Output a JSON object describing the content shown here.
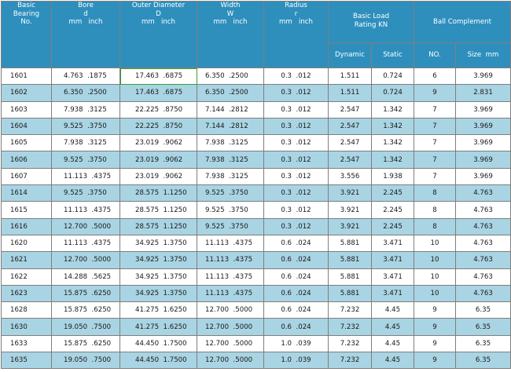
{
  "headers": {
    "basic": [
      "Basic",
      "Bearing",
      "No."
    ],
    "bore": [
      "Bore",
      "d",
      "mm   inch"
    ],
    "outer": [
      "Outer Diameter",
      "D",
      "mm   inch"
    ],
    "width": [
      "Width",
      "W",
      "mm   inch"
    ],
    "radius": [
      "Radius",
      "r",
      "mm   inch"
    ],
    "load": [
      "Basic Load",
      "Rating KN"
    ],
    "ball": "Ball Complement",
    "dynamic": "Dynamic",
    "static": "Static",
    "no": "NO.",
    "size": "Size  mm"
  },
  "rows": [
    {
      "no": "1601",
      "bore": "4.763  .1875",
      "od": "17.463  .6875",
      "w": "6.350  .2500",
      "r": "0.3  .012",
      "dyn": "1.511",
      "stat": "0.724",
      "bn": "6",
      "bs": "3.969"
    },
    {
      "no": "1602",
      "bore": "6.350  .2500",
      "od": "17.463  .6875",
      "w": "6.350  .2500",
      "r": "0.3  .012",
      "dyn": "1.511",
      "stat": "0.724",
      "bn": "9",
      "bs": "2.831"
    },
    {
      "no": "1603",
      "bore": "7.938  .3125",
      "od": "22.225  .8750",
      "w": "7.144  .2812",
      "r": "0.3  .012",
      "dyn": "2.547",
      "stat": "1.342",
      "bn": "7",
      "bs": "3.969"
    },
    {
      "no": "1604",
      "bore": "9.525  .3750",
      "od": "22.225  .8750",
      "w": "7.144  .2812",
      "r": "0.3  .012",
      "dyn": "2.547",
      "stat": "1.342",
      "bn": "7",
      "bs": "3.969"
    },
    {
      "no": "1605",
      "bore": "7.938  .3125",
      "od": "23.019  .9062",
      "w": "7.938  .3125",
      "r": "0.3  .012",
      "dyn": "2.547",
      "stat": "1.342",
      "bn": "7",
      "bs": "3.969"
    },
    {
      "no": "1606",
      "bore": "9.525  .3750",
      "od": "23.019  .9062",
      "w": "7.938  .3125",
      "r": "0.3  .012",
      "dyn": "2.547",
      "stat": "1.342",
      "bn": "7",
      "bs": "3.969"
    },
    {
      "no": "1607",
      "bore": "11.113  .4375",
      "od": "23.019  .9062",
      "w": "7.938  .3125",
      "r": "0.3  .012",
      "dyn": "3.556",
      "stat": "1.938",
      "bn": "7",
      "bs": "3.969"
    },
    {
      "no": "1614",
      "bore": "9.525  .3750",
      "od": "28.575  1.1250",
      "w": "9.525  .3750",
      "r": "0.3  .012",
      "dyn": "3.921",
      "stat": "2.245",
      "bn": "8",
      "bs": "4.763"
    },
    {
      "no": "1615",
      "bore": "11.113  .4375",
      "od": "28.575  1.1250",
      "w": "9.525  .3750",
      "r": "0.3  .012",
      "dyn": "3.921",
      "stat": "2.245",
      "bn": "8",
      "bs": "4.763"
    },
    {
      "no": "1616",
      "bore": "12.700  .5000",
      "od": "28.575  1.1250",
      "w": "9.525  .3750",
      "r": "0.3  .012",
      "dyn": "3.921",
      "stat": "2.245",
      "bn": "8",
      "bs": "4.763"
    },
    {
      "no": "1620",
      "bore": "11.113  .4375",
      "od": "34.925  1.3750",
      "w": "11.113  .4375",
      "r": "0.6  .024",
      "dyn": "5.881",
      "stat": "3.471",
      "bn": "10",
      "bs": "4.763"
    },
    {
      "no": "1621",
      "bore": "12.700  .5000",
      "od": "34.925  1.3750",
      "w": "11.113  .4375",
      "r": "0.6  .024",
      "dyn": "5.881",
      "stat": "3.471",
      "bn": "10",
      "bs": "4.763"
    },
    {
      "no": "1622",
      "bore": "14.288  .5625",
      "od": "34.925  1.3750",
      "w": "11.113  .4375",
      "r": "0.6  .024",
      "dyn": "5.881",
      "stat": "3.471",
      "bn": "10",
      "bs": "4.763"
    },
    {
      "no": "1623",
      "bore": "15.875  .6250",
      "od": "34.925  1.3750",
      "w": "11.113  .4375",
      "r": "0.6  .024",
      "dyn": "5.881",
      "stat": "3.471",
      "bn": "10",
      "bs": "4.763"
    },
    {
      "no": "1628",
      "bore": "15.875  .6250",
      "od": "41.275  1.6250",
      "w": "12.700  .5000",
      "r": "0.6  .024",
      "dyn": "7.232",
      "stat": "4.45",
      "bn": "9",
      "bs": "6.35"
    },
    {
      "no": "1630",
      "bore": "19.050  .7500",
      "od": "41.275  1.6250",
      "w": "12.700  .5000",
      "r": "0.6  .024",
      "dyn": "7.232",
      "stat": "4.45",
      "bn": "9",
      "bs": "6.35"
    },
    {
      "no": "1633",
      "bore": "15.875  .6250",
      "od": "44.450  1.7500",
      "w": "12.700  .5000",
      "r": "1.0  .039",
      "dyn": "7.232",
      "stat": "4.45",
      "bn": "9",
      "bs": "6.35"
    },
    {
      "no": "1635",
      "bore": "19.050  .7500",
      "od": "44.450  1.7500",
      "w": "12.700  .5000",
      "r": "1.0  .039",
      "dyn": "7.232",
      "stat": "4.45",
      "bn": "9",
      "bs": "6.35"
    }
  ]
}
